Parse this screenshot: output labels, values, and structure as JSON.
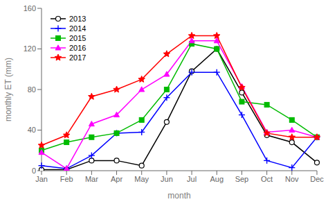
{
  "chart_data": {
    "type": "line",
    "categories": [
      "Jan",
      "Feb",
      "Mar",
      "Apr",
      "May",
      "Jun",
      "Jul",
      "Aug",
      "Sep",
      "Oct",
      "Nov",
      "Dec"
    ],
    "series": [
      {
        "name": "2013",
        "color": "#000000",
        "marker": "open_circle",
        "values": [
          1,
          1,
          10,
          10,
          5,
          48,
          98,
          120,
          77,
          35,
          28,
          8
        ]
      },
      {
        "name": "2014",
        "color": "#0000ff",
        "marker": "plus",
        "values": [
          5,
          2,
          15,
          37,
          38,
          72,
          97,
          97,
          55,
          10,
          3,
          33
        ]
      },
      {
        "name": "2015",
        "color": "#00bb00",
        "marker": "square",
        "values": [
          20,
          28,
          33,
          37,
          50,
          80,
          125,
          120,
          68,
          65,
          50,
          33
        ]
      },
      {
        "name": "2016",
        "color": "#ff00ff",
        "marker": "triangle",
        "values": [
          18,
          2,
          46,
          55,
          80,
          95,
          128,
          128,
          83,
          38,
          40,
          33
        ]
      },
      {
        "name": "2017",
        "color": "#ff0000",
        "marker": "star",
        "values": [
          25,
          35,
          73,
          80,
          90,
          115,
          133,
          133,
          82,
          37,
          33,
          33
        ]
      }
    ],
    "xlabel": "month",
    "ylabel": "monthly ET (mm)",
    "ylim": [
      0,
      160
    ],
    "yticks": [
      0,
      40,
      80,
      120,
      160
    ],
    "grid": false,
    "legend": "upper left"
  }
}
